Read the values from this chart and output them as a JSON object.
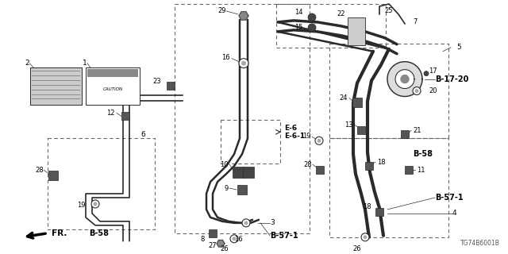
{
  "bg_color": "#ffffff",
  "line_color": "#2a2a2a",
  "diagram_number": "TG74B6001B",
  "fig_w": 6.4,
  "fig_h": 3.2,
  "dpi": 100,
  "xlim": [
    0,
    640
  ],
  "ylim": [
    0,
    320
  ]
}
